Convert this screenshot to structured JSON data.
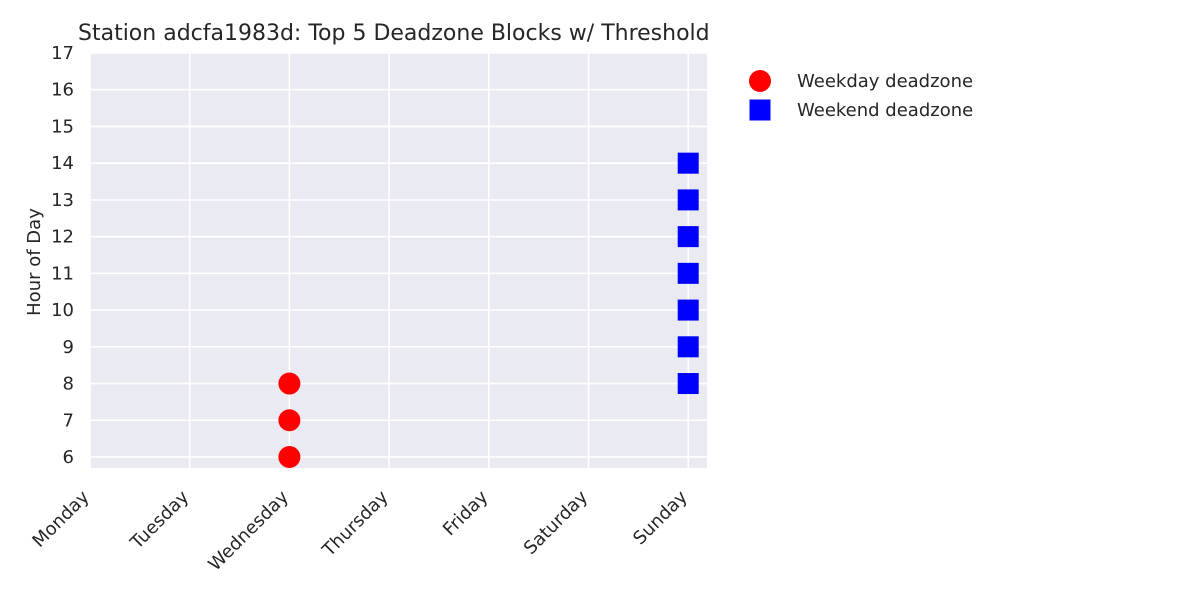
{
  "chart_data": {
    "type": "scatter",
    "title": "Station adcfa1983d: Top 5 Deadzone Blocks w/ Threshold",
    "xlabel": "",
    "ylabel": "Hour of Day",
    "categories": [
      "Monday",
      "Tuesday",
      "Wednesday",
      "Thursday",
      "Friday",
      "Saturday",
      "Sunday"
    ],
    "yticks": [
      6,
      7,
      8,
      9,
      10,
      11,
      12,
      13,
      14,
      15,
      16,
      17
    ],
    "ylim": [
      5.7,
      17
    ],
    "grid": true,
    "legend_position": "outside-right",
    "series": [
      {
        "name": "Weekday deadzone",
        "marker": "circle",
        "color": "#ff0000",
        "points": [
          {
            "day": "Wednesday",
            "hour": 6
          },
          {
            "day": "Wednesday",
            "hour": 7
          },
          {
            "day": "Wednesday",
            "hour": 8
          }
        ]
      },
      {
        "name": "Weekend deadzone",
        "marker": "square",
        "color": "#0000ff",
        "points": [
          {
            "day": "Sunday",
            "hour": 8
          },
          {
            "day": "Sunday",
            "hour": 9
          },
          {
            "day": "Sunday",
            "hour": 10
          },
          {
            "day": "Sunday",
            "hour": 11
          },
          {
            "day": "Sunday",
            "hour": 12
          },
          {
            "day": "Sunday",
            "hour": 13
          },
          {
            "day": "Sunday",
            "hour": 14
          }
        ]
      }
    ]
  }
}
